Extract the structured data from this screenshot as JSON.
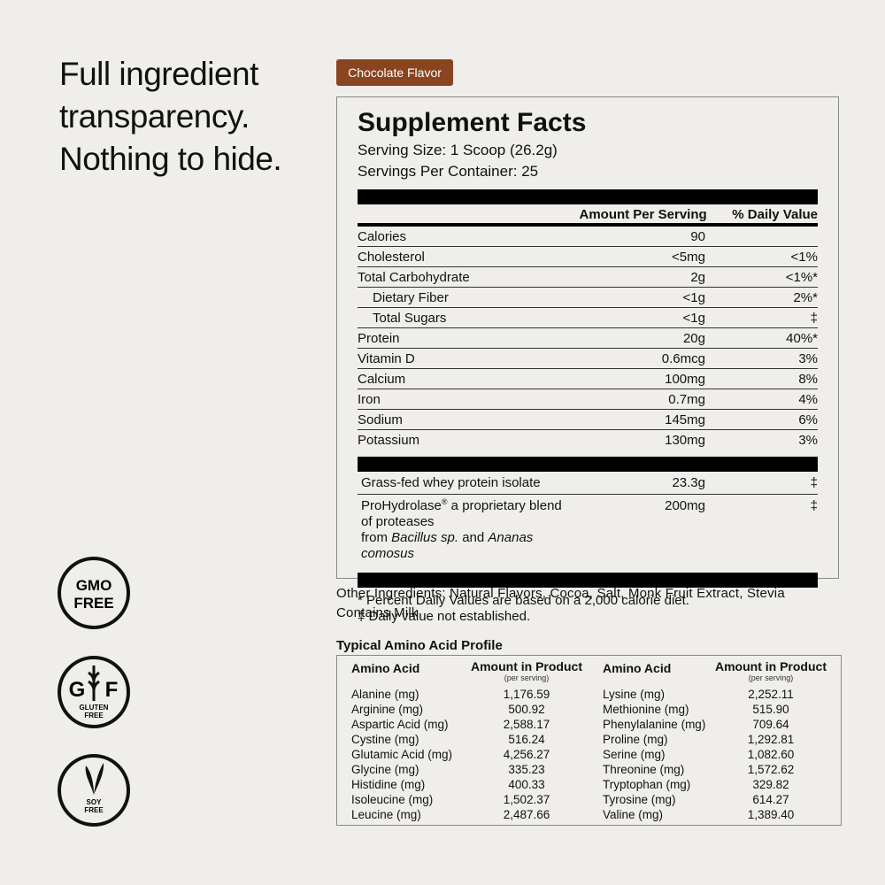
{
  "headline": {
    "lines": [
      "Full ingredient",
      "transparency.",
      "Nothing to hide."
    ]
  },
  "badge": "Chocolate Flavor",
  "facts": {
    "title": "Supplement Facts",
    "serving_size": "Serving Size: 1 Scoop (26.2g)",
    "servings": "Servings Per Container: 25",
    "header": [
      "Amount Per Serving",
      "% Daily Value"
    ],
    "rows": [
      {
        "name": "Calories",
        "amount": "90"
      },
      {
        "name": "Cholesterol",
        "amount": "<5mg",
        "dv": "<1%"
      },
      {
        "name": "Total Carbohydrate",
        "amount": "2g",
        "dv": "<1%*",
        "sub_rows": [
          {
            "name": "Dietary Fiber",
            "amount": "<1g",
            "dv": "2%*"
          },
          {
            "name": "Total Sugars",
            "amount": "<1g",
            "dv": "‡"
          }
        ]
      },
      {
        "name": "Protein",
        "amount": "20g",
        "dv": "40%*"
      },
      {
        "name": "Vitamin D",
        "amount": "0.6mcg",
        "dv": "3%"
      },
      {
        "name": "Calcium",
        "amount": "100mg",
        "dv": "8%"
      },
      {
        "name": "Iron",
        "amount": "0.7mg",
        "dv": "4%"
      },
      {
        "name": "Sodium",
        "amount": "145mg",
        "dv": "6%"
      },
      {
        "name": "Potassium",
        "amount": "130mg",
        "dv": "3%"
      }
    ],
    "blend": [
      {
        "name_parts": [
          "Grass-fed whey protein isolate"
        ],
        "amount": "23.3g",
        "dv": "‡"
      },
      {
        "name_parts": [
          "ProHydrolase",
          "®",
          " a proprietary blend of proteases",
          "from ",
          "Bacillus sp.",
          " and ",
          "Ananas comosus"
        ],
        "amount": "200mg",
        "dv": "‡"
      }
    ],
    "footnotes": [
      "* Percent Daily Values are based on a 2,000 calorie diet.",
      "‡ Daily value not established."
    ]
  },
  "other": [
    "Other Ingredients: Natural Flavors, Cocoa, Salt, Monk Fruit Extract, Stevia",
    "Contains Milk"
  ],
  "amino": {
    "title": "Typical Amino Acid Profile",
    "col_name": "Amino Acid",
    "col_amount": "Amount in Product",
    "col_note": "(per serving)",
    "left": [
      [
        "Alanine (mg)",
        "1,176.59"
      ],
      [
        "Arginine (mg)",
        "500.92"
      ],
      [
        "Aspartic Acid (mg)",
        "2,588.17"
      ],
      [
        "Cystine (mg)",
        "516.24"
      ],
      [
        "Glutamic Acid (mg)",
        "4,256.27"
      ],
      [
        "Glycine (mg)",
        "335.23"
      ],
      [
        "Histidine (mg)",
        "400.33"
      ],
      [
        "Isoleucine (mg)",
        "1,502.37"
      ],
      [
        "Leucine (mg)",
        "2,487.66"
      ]
    ],
    "right": [
      [
        "Lysine (mg)",
        "2,252.11"
      ],
      [
        "Methionine (mg)",
        "515.90"
      ],
      [
        "Phenylalanine (mg)",
        "709.64"
      ],
      [
        "Proline (mg)",
        "1,292.81"
      ],
      [
        "Serine (mg)",
        "1,082.60"
      ],
      [
        "Threonine (mg)",
        "1,572.62"
      ],
      [
        "Tryptophan (mg)",
        "329.82"
      ],
      [
        "Tyrosine (mg)",
        "614.27"
      ],
      [
        "Valine (mg)",
        "1,389.40"
      ]
    ]
  },
  "icons": {
    "gmo": [
      "GMO",
      "FREE"
    ],
    "gluten": [
      "G",
      "F",
      "GLUTEN",
      "FREE"
    ],
    "soy": [
      "SOY",
      "FREE"
    ]
  }
}
